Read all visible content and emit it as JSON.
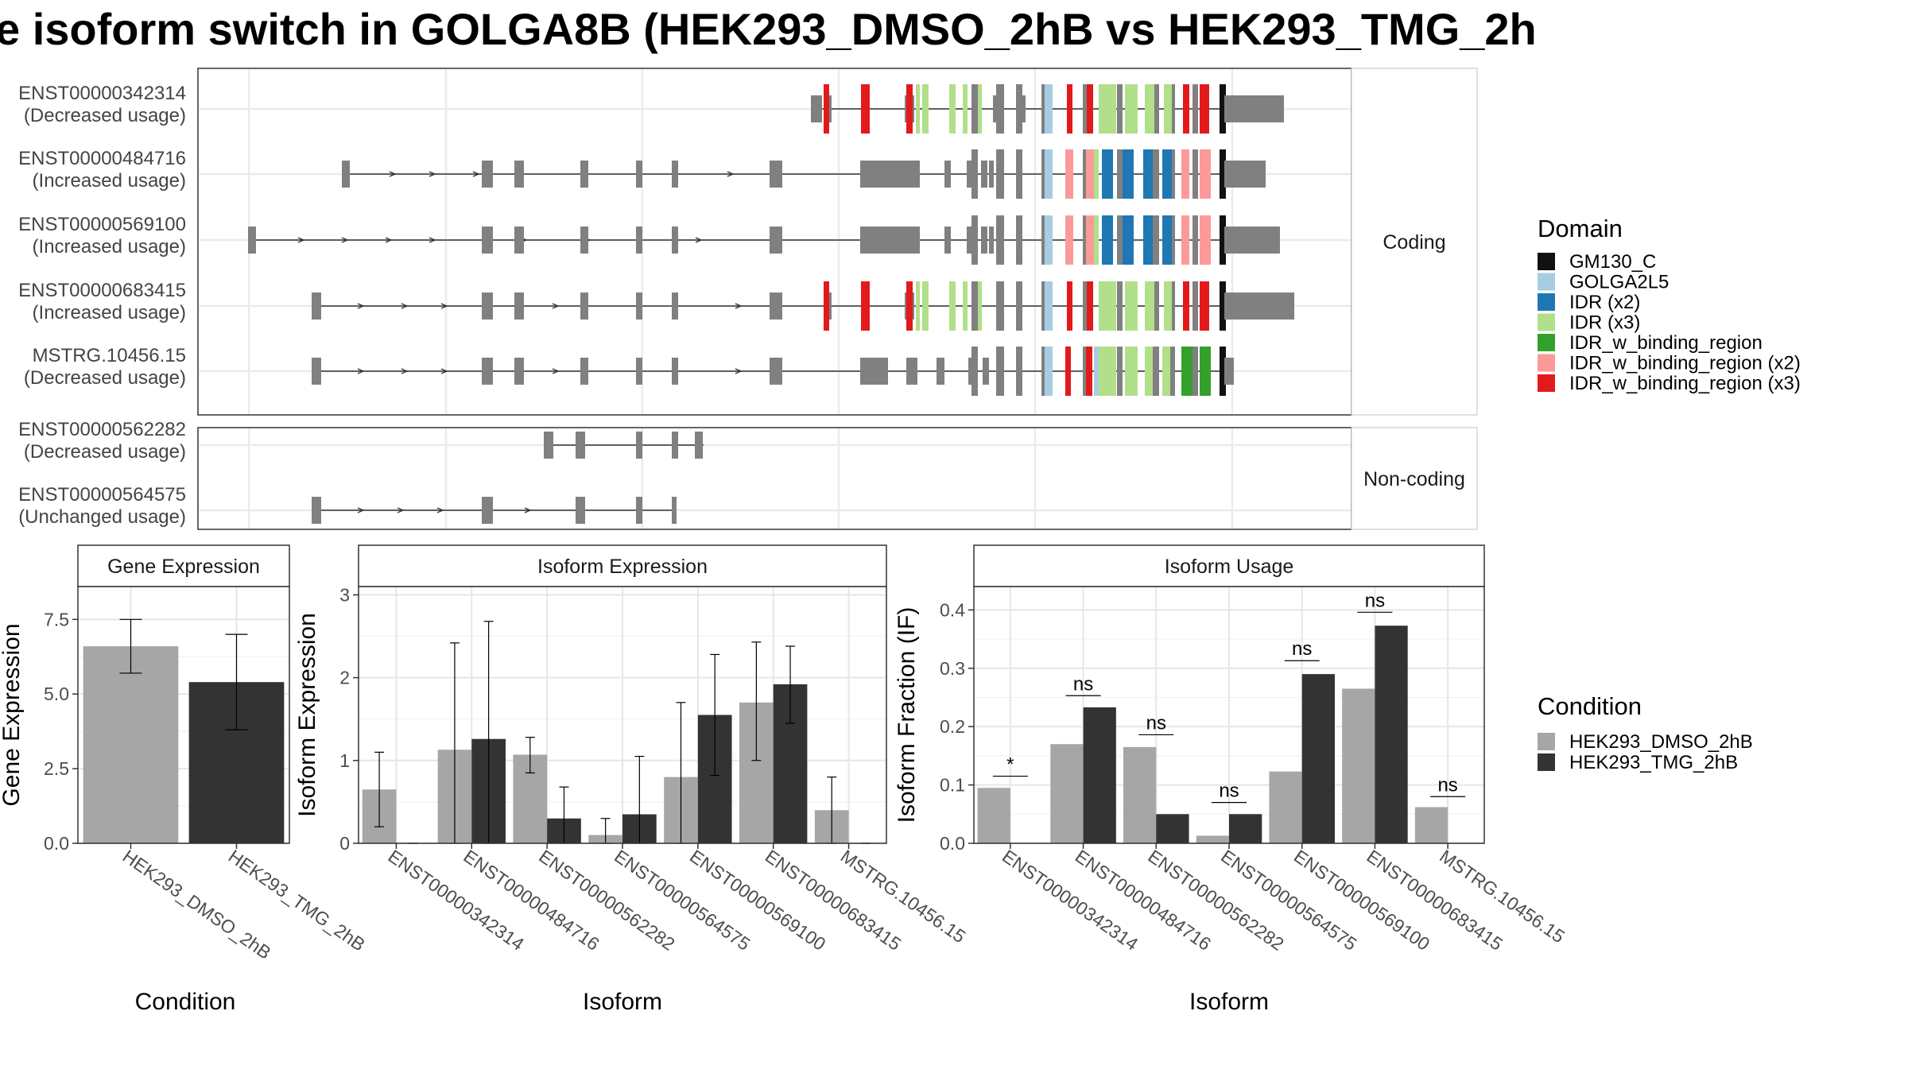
{
  "title": "e isoform switch in GOLGA8B (HEK293_DMSO_2hB vs HEK293_TMG_2h",
  "colors": {
    "exon": "#808080",
    "cond1": "#a6a6a6",
    "cond2": "#333333",
    "domains": {
      "GM130_C": "#111111",
      "GOLGA2L5": "#a6cee3",
      "IDR (x2)": "#1f78b4",
      "IDR (x3)": "#b2df8a",
      "IDR_w_binding_region": "#33a02c",
      "IDR_w_binding_region (x2)": "#fb9a99",
      "IDR_w_binding_region (x3)": "#e31a1c"
    }
  },
  "structure": {
    "facets": [
      "Coding",
      "Non-coding"
    ],
    "transcripts": [
      {
        "id": "ENST00000342314",
        "usage": "(Decreased usage)",
        "facet": "Coding"
      },
      {
        "id": "ENST00000484716",
        "usage": "(Increased usage)",
        "facet": "Coding"
      },
      {
        "id": "ENST00000569100",
        "usage": "(Increased usage)",
        "facet": "Coding"
      },
      {
        "id": "ENST00000683415",
        "usage": "(Increased usage)",
        "facet": "Coding"
      },
      {
        "id": "MSTRG.10456.15",
        "usage": "(Decreased usage)",
        "facet": "Coding"
      },
      {
        "id": "ENST00000562282",
        "usage": "(Decreased usage)",
        "facet": "Non-coding"
      },
      {
        "id": "ENST00000564575",
        "usage": "(Unchanged usage)",
        "facet": "Non-coding"
      }
    ]
  },
  "legend": {
    "domain_title": "Domain",
    "domain_items": [
      "GM130_C",
      "GOLGA2L5",
      "IDR (x2)",
      "IDR (x3)",
      "IDR_w_binding_region",
      "IDR_w_binding_region (x2)",
      "IDR_w_binding_region (x3)"
    ],
    "condition_title": "Condition",
    "condition_items": [
      "HEK293_DMSO_2hB",
      "HEK293_TMG_2hB"
    ]
  },
  "chart_data": [
    {
      "type": "bar",
      "title": "Gene Expression",
      "xlabel": "Condition",
      "ylabel": "Gene Expression",
      "ylim": [
        0,
        8.6
      ],
      "yticks": [
        0.0,
        2.5,
        5.0,
        7.5
      ],
      "ytick_labels": [
        "0.0",
        "2.5",
        "5.0",
        "7.5"
      ],
      "categories": [
        "HEK293_DMSO_2hB",
        "HEK293_TMG_2hB"
      ],
      "values": [
        6.6,
        5.4
      ],
      "err_low": [
        5.7,
        3.8
      ],
      "err_high": [
        7.5,
        7.0
      ]
    },
    {
      "type": "bar",
      "title": "Isoform Expression",
      "xlabel": "Isoform",
      "ylabel": "Isoform Expression",
      "ylim": [
        0,
        3.1
      ],
      "yticks": [
        0,
        1,
        2,
        3
      ],
      "ytick_labels": [
        "0",
        "1",
        "2",
        "3"
      ],
      "categories": [
        "ENST00000342314",
        "ENST00000484716",
        "ENST00000562282",
        "ENST00000564575",
        "ENST00000569100",
        "ENST00000683415",
        "MSTRG.10456.15"
      ],
      "series": [
        {
          "name": "HEK293_DMSO_2hB",
          "values": [
            0.65,
            1.13,
            1.07,
            0.1,
            0.8,
            1.7,
            0.4
          ],
          "err_low": [
            0.2,
            0.0,
            0.85,
            0.0,
            0.0,
            1.0,
            0.0
          ],
          "err_high": [
            1.1,
            2.42,
            1.28,
            0.3,
            1.7,
            2.43,
            0.8
          ]
        },
        {
          "name": "HEK293_TMG_2hB",
          "values": [
            0.0,
            1.26,
            0.3,
            0.35,
            1.55,
            1.92,
            0.0
          ],
          "err_low": [
            0.0,
            0.0,
            0.0,
            0.0,
            0.82,
            1.45,
            0.0
          ],
          "err_high": [
            0.0,
            2.68,
            0.68,
            1.05,
            2.28,
            2.38,
            0.0
          ]
        }
      ]
    },
    {
      "type": "bar",
      "title": "Isoform Usage",
      "xlabel": "Isoform",
      "ylabel": "Isoform Fraction (IF)",
      "ylim": [
        0,
        0.44
      ],
      "yticks": [
        0.0,
        0.1,
        0.2,
        0.3,
        0.4
      ],
      "ytick_labels": [
        "0.0",
        "0.1",
        "0.2",
        "0.3",
        "0.4"
      ],
      "categories": [
        "ENST00000342314",
        "ENST00000484716",
        "ENST00000562282",
        "ENST00000564575",
        "ENST00000569100",
        "ENST00000683415",
        "MSTRG.10456.15"
      ],
      "series": [
        {
          "name": "HEK293_DMSO_2hB",
          "values": [
            0.095,
            0.17,
            0.165,
            0.013,
            0.123,
            0.265,
            0.062
          ]
        },
        {
          "name": "HEK293_TMG_2hB",
          "values": [
            0.0,
            0.233,
            0.05,
            0.05,
            0.29,
            0.373,
            0.0
          ]
        }
      ],
      "significance": [
        "*",
        "ns",
        "ns",
        "ns",
        "ns",
        "ns",
        "ns"
      ],
      "significance_level": [
        0.115,
        0.253,
        0.186,
        0.07,
        0.313,
        0.396,
        0.08
      ]
    }
  ]
}
